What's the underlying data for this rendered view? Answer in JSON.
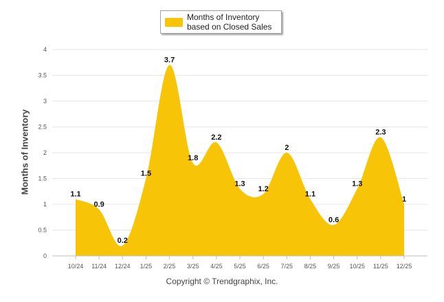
{
  "chart_data": {
    "type": "area",
    "title": "",
    "categories": [
      "10/24",
      "11/24",
      "12/24",
      "1/25",
      "2/25",
      "3/25",
      "4/25",
      "5/25",
      "6/25",
      "7/25",
      "8/25",
      "9/25",
      "10/25",
      "11/25",
      "12/25"
    ],
    "series": [
      {
        "name": "Months of Inventory based on Closed Sales",
        "values": [
          1.1,
          0.9,
          0.2,
          1.5,
          3.7,
          1.8,
          2.2,
          1.3,
          1.2,
          2,
          1.1,
          0.6,
          1.3,
          2.3,
          1
        ],
        "labels": [
          "1.1",
          "0.9",
          "0.2",
          "1.5",
          "3.7",
          "1.8",
          "2.2",
          "1.3",
          "1.2",
          "2",
          "1.1",
          "0.6",
          "1.3",
          "2.3",
          "1"
        ],
        "color": "#f7c407"
      }
    ],
    "xlabel": "",
    "ylabel": "Months of Inventory",
    "ylim": [
      0,
      4
    ],
    "yticks": [
      "0",
      "0.5",
      "1",
      "1.5",
      "2",
      "2.5",
      "3",
      "3.5",
      "4"
    ],
    "grid": true,
    "legend_position": "top-center"
  },
  "legend": {
    "label": "Months of Inventory based on Closed Sales",
    "swatch_color": "#f7c407"
  },
  "footer": {
    "copyright": "Copyright © Trendgraphix, Inc."
  }
}
